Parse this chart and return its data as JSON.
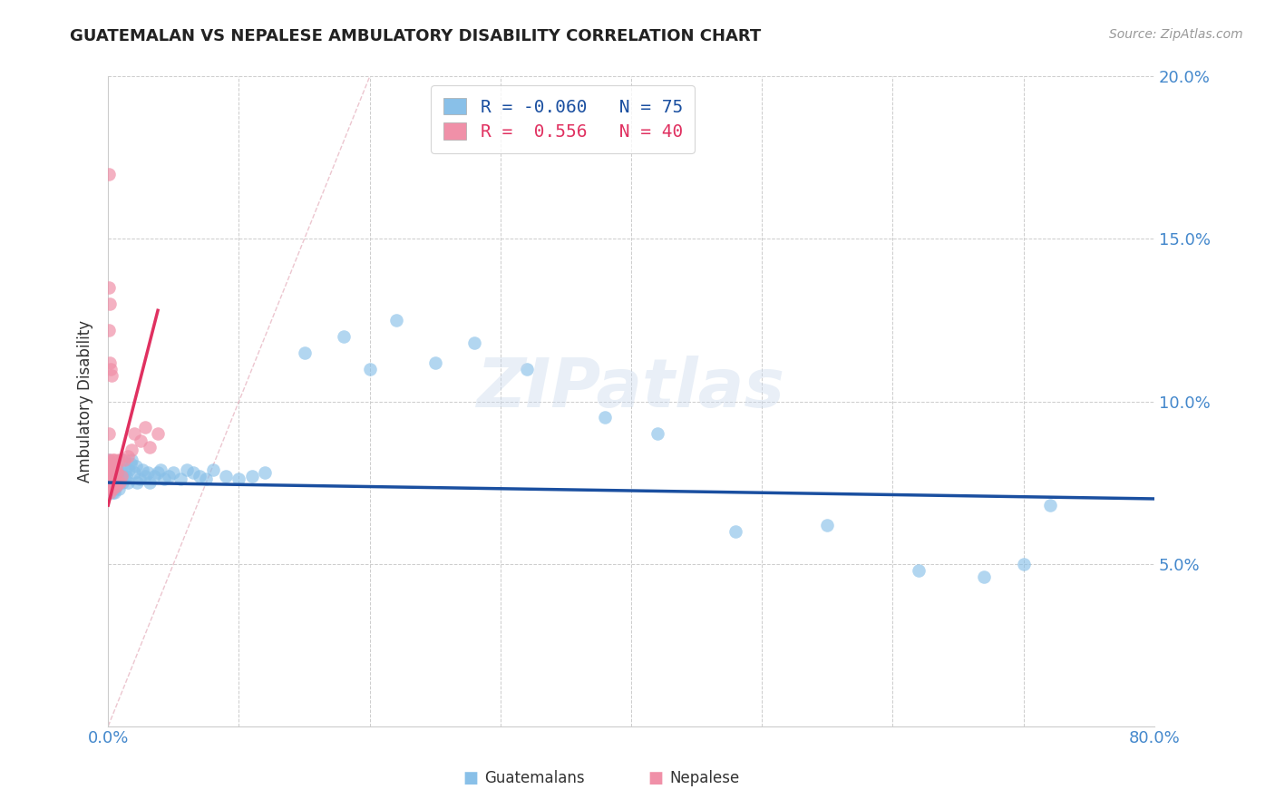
{
  "title": "GUATEMALAN VS NEPALESE AMBULATORY DISABILITY CORRELATION CHART",
  "source": "Source: ZipAtlas.com",
  "ylabel": "Ambulatory Disability",
  "xlim": [
    0.0,
    0.8
  ],
  "ylim": [
    0.0,
    0.2
  ],
  "color_guatemalan": "#89C0E8",
  "color_nepalese": "#F090A8",
  "color_line_guatemalan": "#1A4FA0",
  "color_line_nepalese": "#E03060",
  "color_axis": "#4488CC",
  "legend_guatemalan_R": "-0.060",
  "legend_guatemalan_N": "75",
  "legend_nepalese_R": " 0.556",
  "legend_nepalese_N": "40",
  "guatemalan_x": [
    0.0005,
    0.001,
    0.001,
    0.0015,
    0.0015,
    0.002,
    0.002,
    0.002,
    0.0025,
    0.003,
    0.003,
    0.003,
    0.0035,
    0.004,
    0.004,
    0.0045,
    0.005,
    0.005,
    0.005,
    0.006,
    0.006,
    0.007,
    0.007,
    0.008,
    0.008,
    0.009,
    0.01,
    0.01,
    0.011,
    0.012,
    0.013,
    0.014,
    0.015,
    0.016,
    0.017,
    0.018,
    0.02,
    0.021,
    0.022,
    0.024,
    0.026,
    0.028,
    0.03,
    0.032,
    0.035,
    0.038,
    0.04,
    0.043,
    0.046,
    0.05,
    0.055,
    0.06,
    0.065,
    0.07,
    0.075,
    0.08,
    0.09,
    0.1,
    0.11,
    0.12,
    0.15,
    0.18,
    0.2,
    0.22,
    0.25,
    0.28,
    0.32,
    0.38,
    0.42,
    0.48,
    0.55,
    0.62,
    0.67,
    0.7,
    0.72
  ],
  "guatemalan_y": [
    0.082,
    0.076,
    0.078,
    0.074,
    0.08,
    0.073,
    0.075,
    0.077,
    0.076,
    0.072,
    0.074,
    0.078,
    0.08,
    0.075,
    0.077,
    0.073,
    0.076,
    0.072,
    0.078,
    0.074,
    0.077,
    0.075,
    0.079,
    0.073,
    0.077,
    0.076,
    0.078,
    0.082,
    0.075,
    0.076,
    0.079,
    0.077,
    0.075,
    0.079,
    0.081,
    0.082,
    0.078,
    0.08,
    0.075,
    0.076,
    0.079,
    0.077,
    0.078,
    0.075,
    0.077,
    0.078,
    0.079,
    0.076,
    0.077,
    0.078,
    0.076,
    0.079,
    0.078,
    0.077,
    0.076,
    0.079,
    0.077,
    0.076,
    0.077,
    0.078,
    0.115,
    0.12,
    0.11,
    0.125,
    0.112,
    0.118,
    0.11,
    0.095,
    0.09,
    0.06,
    0.062,
    0.048,
    0.046,
    0.05,
    0.068
  ],
  "nepalese_x": [
    0.0003,
    0.0005,
    0.0005,
    0.0007,
    0.0008,
    0.001,
    0.001,
    0.001,
    0.0012,
    0.0013,
    0.0015,
    0.0015,
    0.0018,
    0.002,
    0.002,
    0.002,
    0.0022,
    0.0025,
    0.003,
    0.003,
    0.0032,
    0.0035,
    0.004,
    0.004,
    0.005,
    0.005,
    0.006,
    0.006,
    0.007,
    0.008,
    0.009,
    0.01,
    0.012,
    0.015,
    0.018,
    0.02,
    0.025,
    0.028,
    0.032,
    0.038
  ],
  "nepalese_y": [
    0.082,
    0.078,
    0.09,
    0.075,
    0.077,
    0.08,
    0.076,
    0.072,
    0.079,
    0.074,
    0.077,
    0.073,
    0.076,
    0.08,
    0.074,
    0.078,
    0.075,
    0.074,
    0.082,
    0.077,
    0.073,
    0.076,
    0.079,
    0.075,
    0.082,
    0.076,
    0.08,
    0.074,
    0.078,
    0.082,
    0.075,
    0.077,
    0.082,
    0.083,
    0.085,
    0.09,
    0.088,
    0.092,
    0.086,
    0.09
  ],
  "nepalese_outliers_x": [
    0.0002,
    0.0005,
    0.0008,
    0.001,
    0.0015,
    0.002,
    0.0025
  ],
  "nepalese_outliers_y": [
    0.17,
    0.135,
    0.122,
    0.13,
    0.112,
    0.11,
    0.108
  ],
  "ref_line_x": [
    0.0,
    0.2
  ],
  "ref_line_y": [
    0.0,
    0.2
  ]
}
